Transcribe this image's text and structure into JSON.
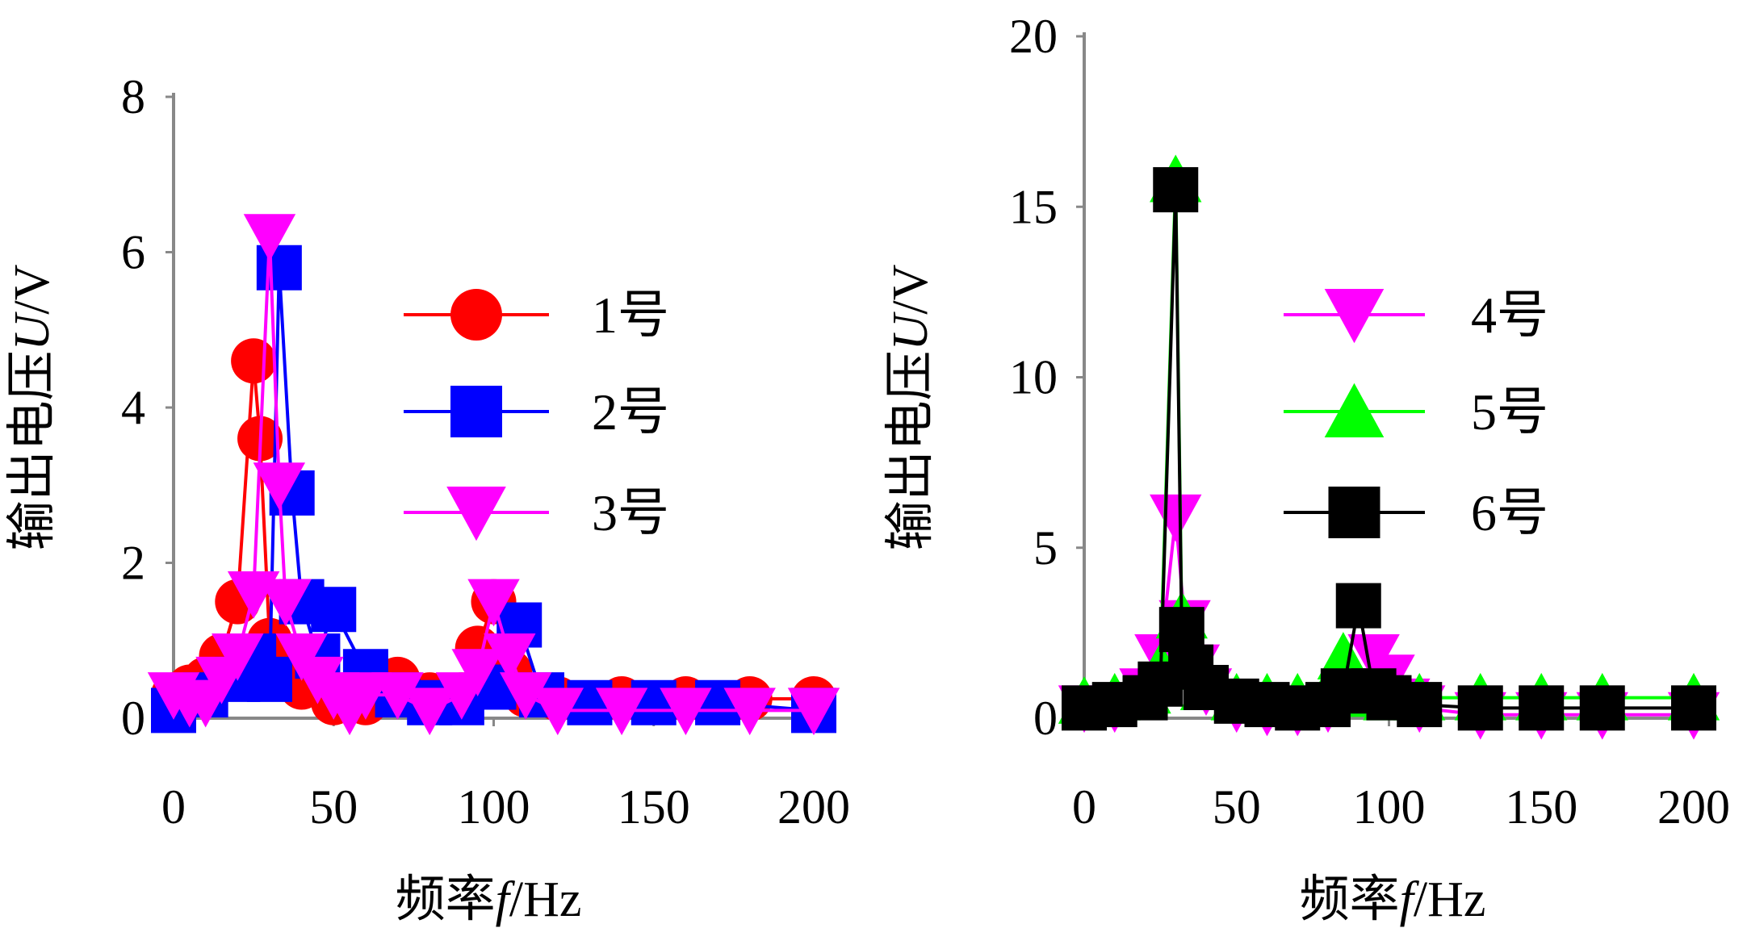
{
  "chart_data": [
    {
      "type": "line",
      "xlabel_parts": [
        "频率",
        "f",
        "/Hz"
      ],
      "ylabel_parts": [
        "输出电压",
        "U",
        "/V"
      ],
      "xlim": [
        0,
        200
      ],
      "ylim": [
        0,
        8
      ],
      "xticks": [
        "0",
        "50",
        "100",
        "150",
        "200"
      ],
      "yticks": [
        "0",
        "2",
        "4",
        "6",
        "8"
      ],
      "grid": false,
      "legend_position": "upper-right",
      "series": [
        {
          "name": "1号",
          "color": "#ff0000",
          "marker": "circle",
          "x": [
            0,
            5,
            10,
            15,
            20,
            25,
            27,
            30,
            35,
            40,
            50,
            60,
            70,
            80,
            90,
            95,
            100,
            105,
            110,
            120,
            140,
            160,
            180,
            200
          ],
          "y": [
            0.3,
            0.4,
            0.5,
            0.8,
            1.5,
            4.6,
            3.6,
            1.0,
            0.6,
            0.4,
            0.2,
            0.2,
            0.5,
            0.3,
            0.3,
            0.9,
            1.5,
            0.6,
            0.3,
            0.25,
            0.25,
            0.25,
            0.25,
            0.25
          ]
        },
        {
          "name": "2号",
          "color": "#0000ff",
          "marker": "square",
          "x": [
            0,
            10,
            20,
            25,
            30,
            33,
            37,
            40,
            45,
            50,
            60,
            70,
            80,
            90,
            100,
            108,
            115,
            130,
            150,
            170,
            200
          ],
          "y": [
            0.1,
            0.3,
            0.5,
            0.8,
            0.5,
            5.8,
            2.9,
            1.5,
            0.8,
            1.4,
            0.6,
            0.3,
            0.2,
            0.2,
            0.4,
            1.2,
            0.3,
            0.2,
            0.2,
            0.2,
            0.1
          ]
        },
        {
          "name": "3号",
          "color": "#ff00ff",
          "marker": "triangle-down",
          "x": [
            0,
            5,
            10,
            15,
            20,
            25,
            30,
            33,
            35,
            40,
            45,
            50,
            55,
            60,
            70,
            80,
            90,
            95,
            100,
            105,
            110,
            120,
            140,
            160,
            180,
            200
          ],
          "y": [
            0.3,
            0.2,
            0.2,
            0.5,
            0.8,
            1.6,
            6.2,
            3.0,
            1.5,
            0.8,
            0.5,
            0.3,
            0.1,
            0.3,
            0.3,
            0.1,
            0.3,
            0.6,
            1.5,
            0.8,
            0.3,
            0.1,
            0.1,
            0.1,
            0.1,
            0.1
          ]
        }
      ],
      "legend": [
        "1号",
        "2号",
        "3号"
      ]
    },
    {
      "type": "line",
      "xlabel_parts": [
        "频率",
        "f",
        "/Hz"
      ],
      "ylabel_parts": [
        "输出电压",
        "U",
        "/V"
      ],
      "xlim": [
        0,
        200
      ],
      "ylim": [
        0,
        20
      ],
      "xticks": [
        "0",
        "50",
        "100",
        "150",
        "200"
      ],
      "yticks": [
        "0",
        "5",
        "10",
        "15",
        "20"
      ],
      "grid": false,
      "legend_position": "upper-right",
      "series": [
        {
          "name": "4号",
          "color": "#ff00ff",
          "marker": "triangle-down",
          "x": [
            0,
            10,
            20,
            25,
            30,
            33,
            36,
            40,
            50,
            60,
            70,
            80,
            90,
            95,
            100,
            105,
            110,
            130,
            150,
            170,
            200
          ],
          "y": [
            0.3,
            0.3,
            0.8,
            1.8,
            5.9,
            2.8,
            1.5,
            0.8,
            0.3,
            0.2,
            0.2,
            0.3,
            0.8,
            1.8,
            1.2,
            0.5,
            0.3,
            0.1,
            0.1,
            0.1,
            0.1
          ]
        },
        {
          "name": "5号",
          "color": "#00ff00",
          "marker": "triangle-up",
          "x": [
            0,
            10,
            20,
            25,
            30,
            32,
            35,
            40,
            50,
            60,
            70,
            80,
            85,
            90,
            100,
            110,
            130,
            150,
            170,
            200
          ],
          "y": [
            0.5,
            0.6,
            0.8,
            1.5,
            15.8,
            3.0,
            1.5,
            0.9,
            0.6,
            0.6,
            0.6,
            0.8,
            1.8,
            0.7,
            0.6,
            0.6,
            0.6,
            0.6,
            0.6,
            0.6
          ]
        },
        {
          "name": "6号",
          "color": "#000000",
          "marker": "square",
          "x": [
            0,
            10,
            20,
            25,
            30,
            32,
            35,
            40,
            50,
            60,
            70,
            80,
            85,
            90,
            95,
            100,
            110,
            130,
            150,
            170,
            200
          ],
          "y": [
            0.3,
            0.4,
            0.6,
            1.0,
            15.5,
            2.6,
            1.5,
            0.9,
            0.5,
            0.4,
            0.3,
            0.4,
            0.8,
            3.3,
            0.8,
            0.6,
            0.4,
            0.3,
            0.3,
            0.3,
            0.3
          ]
        }
      ],
      "legend": [
        "4号",
        "5号",
        "6号"
      ]
    }
  ]
}
